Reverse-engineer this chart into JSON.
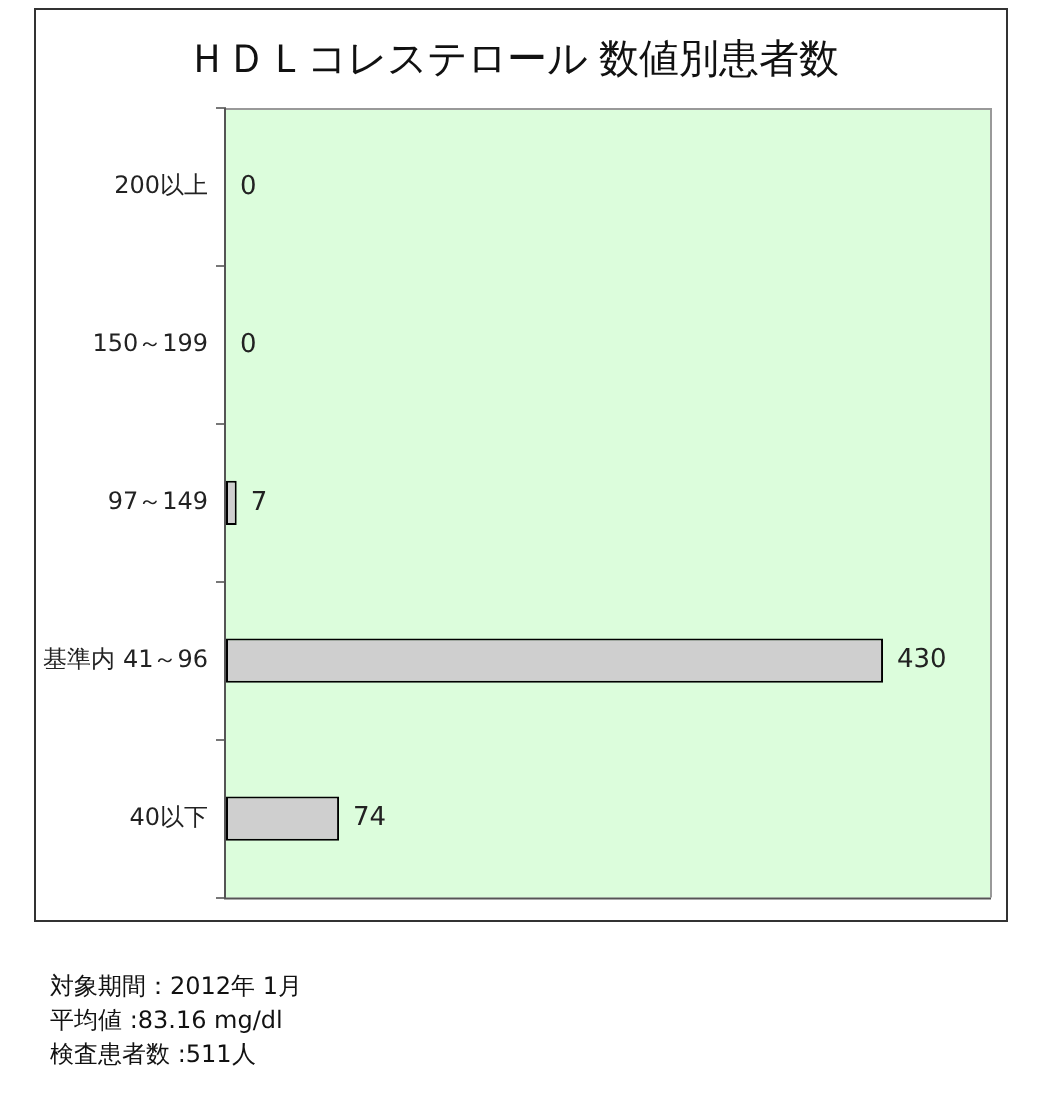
{
  "chart_data": {
    "type": "bar",
    "title": "ＨＤＬコレステロール 数値別患者数",
    "orientation": "horizontal",
    "categories": [
      "200以上",
      "150～199",
      "97～149",
      "基準内 41～96",
      "40以下"
    ],
    "values": [
      0,
      0,
      7,
      430,
      74
    ],
    "color": "#cfcfcf",
    "data_labels": true,
    "tick_labels": "y",
    "annotations": [
      "対象期間：2012年 1月",
      "平均値 :83.16 mg/dl",
      "検査患者数 :511人"
    ]
  }
}
